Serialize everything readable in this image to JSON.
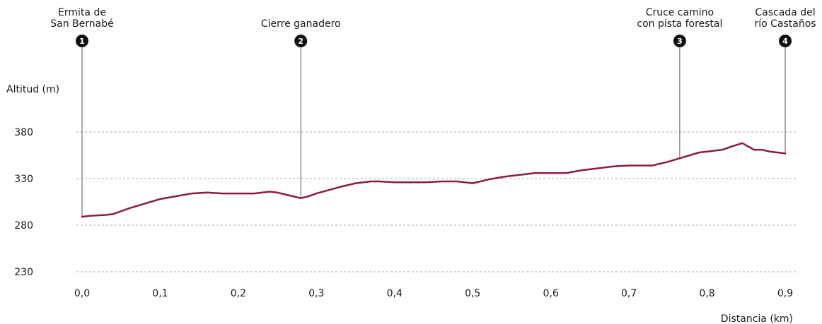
{
  "chart_data": {
    "type": "area",
    "ylabel": "Altitud (m)",
    "xlabel": "Distancia (km)",
    "xlim": [
      0,
      0.9
    ],
    "ylim": [
      230,
      380
    ],
    "x_ticks": [
      "0,0",
      "0,1",
      "0,2",
      "0,3",
      "0,4",
      "0,5",
      "0,6",
      "0,7",
      "0,8",
      "0,9"
    ],
    "y_ticks": [
      "380",
      "330",
      "280",
      "230"
    ],
    "grid": true,
    "line_color": "#8c1c3f",
    "profile": {
      "x": [
        0.0,
        0.01,
        0.03,
        0.04,
        0.06,
        0.08,
        0.1,
        0.12,
        0.14,
        0.16,
        0.18,
        0.2,
        0.22,
        0.24,
        0.25,
        0.27,
        0.28,
        0.29,
        0.3,
        0.33,
        0.35,
        0.37,
        0.38,
        0.4,
        0.42,
        0.44,
        0.46,
        0.48,
        0.5,
        0.52,
        0.54,
        0.56,
        0.58,
        0.6,
        0.62,
        0.64,
        0.66,
        0.68,
        0.7,
        0.72,
        0.73,
        0.75,
        0.77,
        0.79,
        0.8,
        0.82,
        0.83,
        0.845,
        0.86,
        0.87,
        0.88,
        0.89,
        0.9
      ],
      "y": [
        289,
        290,
        291,
        292,
        298,
        303,
        308,
        311,
        314,
        315,
        314,
        314,
        314,
        316,
        315,
        311,
        309,
        311,
        314,
        321,
        325,
        327,
        327,
        326,
        326,
        326,
        327,
        327,
        325,
        329,
        332,
        334,
        336,
        336,
        336,
        339,
        341,
        343,
        344,
        344,
        344,
        348,
        353,
        358,
        359,
        361,
        364,
        368,
        361,
        361,
        359,
        358,
        357
      ]
    },
    "waypoints": [
      {
        "num": "1",
        "label": [
          "Ermita de",
          "San Bernabé"
        ],
        "x": 0.0,
        "y": 289
      },
      {
        "num": "2",
        "label": [
          "Cierre ganadero"
        ],
        "x": 0.28,
        "y": 309
      },
      {
        "num": "3",
        "label": [
          "Cruce camino",
          "con pista forestal"
        ],
        "x": 0.765,
        "y": 352
      },
      {
        "num": "4",
        "label": [
          "Cascada del",
          "río Castaños"
        ],
        "x": 0.9,
        "y": 357
      }
    ]
  }
}
